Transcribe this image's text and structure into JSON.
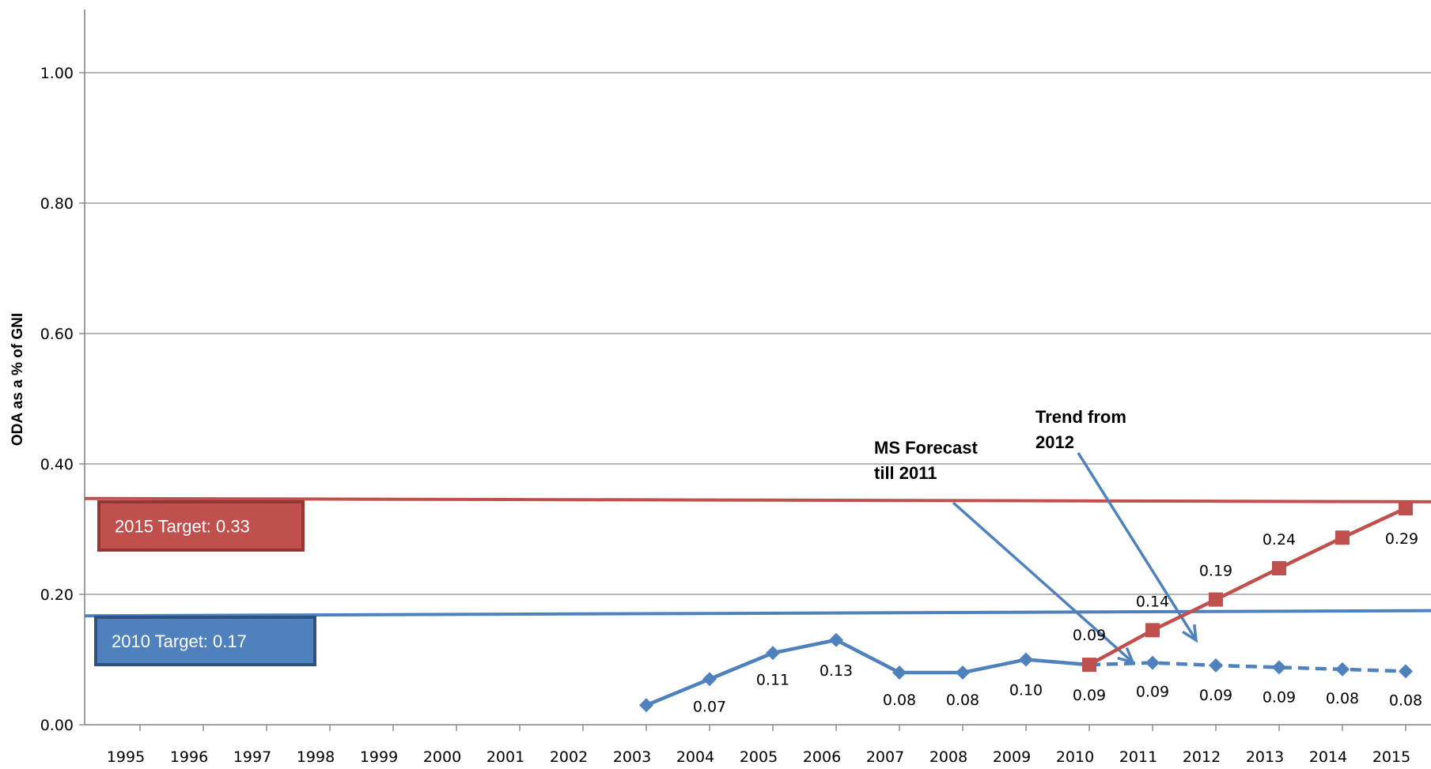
{
  "chart_data": {
    "type": "line",
    "ylabel": "ODA as a % of GNI",
    "xlabel": "",
    "ylim": [
      0,
      1.1
    ],
    "yticks": [
      "0.00",
      "0.20",
      "0.40",
      "0.60",
      "0.80",
      "1.00"
    ],
    "ytick_values": [
      0,
      0.2,
      0.4,
      0.6,
      0.8,
      1.0
    ],
    "categories": [
      "1995",
      "1996",
      "1997",
      "1998",
      "1999",
      "2000",
      "2001",
      "2002",
      "2003",
      "2004",
      "2005",
      "2006",
      "2007",
      "2008",
      "2009",
      "2010",
      "2011",
      "2012",
      "2013",
      "2014",
      "2015"
    ],
    "grid": true,
    "colors": {
      "blue": "#4f81bd",
      "red": "#c0504d",
      "blue_dark": "#2e5283",
      "red_dark": "#943634"
    },
    "series": [
      {
        "key": "actual",
        "x": [
          "2003",
          "2004",
          "2005",
          "2006",
          "2007",
          "2008",
          "2009",
          "2010"
        ],
        "values": [
          0.03,
          0.07,
          0.11,
          0.13,
          0.08,
          0.08,
          0.1,
          0.092
        ],
        "labels": [
          "",
          "0.07",
          "0.11",
          "0.13",
          "0.08",
          "0.08",
          "0.10",
          "0.09"
        ],
        "marker": "diamond",
        "style": "solid",
        "color": "#4f81bd"
      },
      {
        "key": "forecast",
        "x": [
          "2010",
          "2011",
          "2012",
          "2013",
          "2014",
          "2015"
        ],
        "values": [
          0.092,
          0.095,
          0.091,
          0.088,
          0.085,
          0.082
        ],
        "labels": [
          "",
          "0.09",
          "0.09",
          "0.09",
          "0.08",
          "0.08"
        ],
        "marker": "diamond",
        "style": "dashed",
        "color": "#4f81bd"
      },
      {
        "key": "trend",
        "x": [
          "2010",
          "2011",
          "2012",
          "2013",
          "2014",
          "2015"
        ],
        "values": [
          0.092,
          0.145,
          0.192,
          0.24,
          0.287,
          0.332
        ],
        "labels": [
          "0.09",
          "0.14",
          "0.19",
          "0.24",
          "0.29",
          ""
        ],
        "marker": "square",
        "style": "solid",
        "color": "#c0504d"
      }
    ],
    "targets": [
      {
        "label": "2015 Target: 0.33",
        "value_left": 0.347,
        "value_right": 0.342,
        "color": "#c0504d",
        "border": "#943634"
      },
      {
        "label": "2010 Target: 0.17",
        "value_left": 0.167,
        "value_right": 0.175,
        "color": "#4f81bd",
        "border": "#2e5283"
      }
    ],
    "annotations": [
      {
        "key": "ms_forecast",
        "lines": [
          "MS Forecast",
          "till 2011"
        ]
      },
      {
        "key": "trend_from",
        "lines": [
          "Trend from",
          "2012"
        ]
      }
    ]
  }
}
